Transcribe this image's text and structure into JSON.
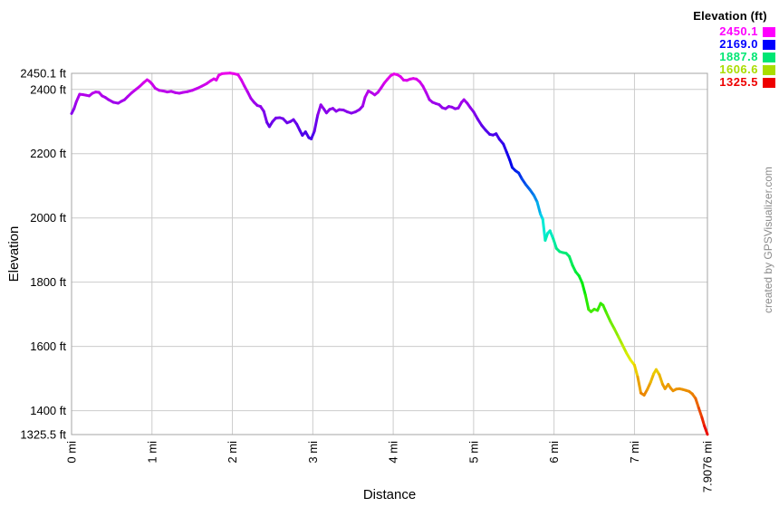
{
  "credit": "created by GPSVisualizer.com",
  "legend": {
    "title": "Elevation (ft)",
    "entries": [
      {
        "value": "2450.1",
        "color": "#ff00ff"
      },
      {
        "value": "2169.0",
        "color": "#0000ff"
      },
      {
        "value": "1887.8",
        "color": "#00e673"
      },
      {
        "value": "1606.6",
        "color": "#aadd00"
      },
      {
        "value": "1325.5",
        "color": "#ee0000"
      }
    ]
  },
  "chart_data": {
    "type": "line",
    "title": "",
    "xlabel": "Distance",
    "ylabel": "Elevation",
    "x_unit": "mi",
    "y_unit": "ft",
    "xlim": [
      0,
      7.9076
    ],
    "ylim": [
      1325.5,
      2450.1
    ],
    "grid": true,
    "legend_position": "top-right",
    "x_ticks": [
      {
        "value": 0,
        "label": "0 mi"
      },
      {
        "value": 1,
        "label": "1 mi"
      },
      {
        "value": 2,
        "label": "2 mi"
      },
      {
        "value": 3,
        "label": "3 mi"
      },
      {
        "value": 4,
        "label": "4 mi"
      },
      {
        "value": 5,
        "label": "5 mi"
      },
      {
        "value": 6,
        "label": "6 mi"
      },
      {
        "value": 7,
        "label": "7 mi"
      },
      {
        "value": 7.9076,
        "label": "7.9076 mi"
      }
    ],
    "y_ticks": [
      {
        "value": 2450.1,
        "label": "2450.1 ft"
      },
      {
        "value": 2400,
        "label": "2400 ft"
      },
      {
        "value": 2200,
        "label": "2200 ft"
      },
      {
        "value": 2000,
        "label": "2000 ft"
      },
      {
        "value": 1800,
        "label": "1800 ft"
      },
      {
        "value": 1600,
        "label": "1600 ft"
      },
      {
        "value": 1400,
        "label": "1400 ft"
      },
      {
        "value": 1325.5,
        "label": "1325.5 ft"
      }
    ],
    "color_mode": "elevation-rainbow-hue",
    "color_stops": [
      {
        "elevation": 2450.1,
        "hue": 300
      },
      {
        "elevation": 2169.0,
        "hue": 240
      },
      {
        "elevation": 1887.8,
        "hue": 150
      },
      {
        "elevation": 1606.6,
        "hue": 75
      },
      {
        "elevation": 1325.5,
        "hue": 0
      }
    ],
    "points": [
      [
        0.0,
        2325
      ],
      [
        0.03,
        2340
      ],
      [
        0.06,
        2362
      ],
      [
        0.1,
        2385
      ],
      [
        0.14,
        2384
      ],
      [
        0.18,
        2382
      ],
      [
        0.22,
        2380
      ],
      [
        0.26,
        2388
      ],
      [
        0.3,
        2392
      ],
      [
        0.34,
        2391
      ],
      [
        0.38,
        2380
      ],
      [
        0.42,
        2375
      ],
      [
        0.46,
        2368
      ],
      [
        0.52,
        2360
      ],
      [
        0.58,
        2357
      ],
      [
        0.62,
        2363
      ],
      [
        0.66,
        2368
      ],
      [
        0.7,
        2378
      ],
      [
        0.75,
        2390
      ],
      [
        0.8,
        2400
      ],
      [
        0.85,
        2410
      ],
      [
        0.9,
        2422
      ],
      [
        0.94,
        2430
      ],
      [
        0.97,
        2425
      ],
      [
        1.0,
        2417
      ],
      [
        1.04,
        2404
      ],
      [
        1.09,
        2397
      ],
      [
        1.14,
        2395
      ],
      [
        1.19,
        2392
      ],
      [
        1.24,
        2394
      ],
      [
        1.29,
        2390
      ],
      [
        1.34,
        2388
      ],
      [
        1.39,
        2391
      ],
      [
        1.44,
        2393
      ],
      [
        1.5,
        2397
      ],
      [
        1.56,
        2403
      ],
      [
        1.62,
        2410
      ],
      [
        1.68,
        2418
      ],
      [
        1.73,
        2427
      ],
      [
        1.77,
        2433
      ],
      [
        1.8,
        2429
      ],
      [
        1.83,
        2444
      ],
      [
        1.87,
        2449
      ],
      [
        1.92,
        2450
      ],
      [
        1.97,
        2451
      ],
      [
        2.02,
        2449
      ],
      [
        2.07,
        2446
      ],
      [
        2.11,
        2430
      ],
      [
        2.15,
        2410
      ],
      [
        2.19,
        2392
      ],
      [
        2.23,
        2372
      ],
      [
        2.27,
        2360
      ],
      [
        2.31,
        2350
      ],
      [
        2.35,
        2347
      ],
      [
        2.39,
        2332
      ],
      [
        2.43,
        2297
      ],
      [
        2.46,
        2284
      ],
      [
        2.5,
        2300
      ],
      [
        2.54,
        2311
      ],
      [
        2.59,
        2312
      ],
      [
        2.63,
        2309
      ],
      [
        2.68,
        2296
      ],
      [
        2.72,
        2300
      ],
      [
        2.76,
        2306
      ],
      [
        2.8,
        2292
      ],
      [
        2.84,
        2272
      ],
      [
        2.87,
        2257
      ],
      [
        2.91,
        2268
      ],
      [
        2.95,
        2250
      ],
      [
        2.98,
        2246
      ],
      [
        3.02,
        2270
      ],
      [
        3.06,
        2320
      ],
      [
        3.1,
        2352
      ],
      [
        3.14,
        2338
      ],
      [
        3.17,
        2327
      ],
      [
        3.21,
        2338
      ],
      [
        3.25,
        2341
      ],
      [
        3.29,
        2332
      ],
      [
        3.33,
        2337
      ],
      [
        3.38,
        2336
      ],
      [
        3.43,
        2330
      ],
      [
        3.48,
        2326
      ],
      [
        3.53,
        2330
      ],
      [
        3.58,
        2337
      ],
      [
        3.62,
        2348
      ],
      [
        3.65,
        2375
      ],
      [
        3.69,
        2395
      ],
      [
        3.73,
        2390
      ],
      [
        3.77,
        2383
      ],
      [
        3.81,
        2391
      ],
      [
        3.85,
        2405
      ],
      [
        3.89,
        2420
      ],
      [
        3.93,
        2432
      ],
      [
        3.97,
        2443
      ],
      [
        4.01,
        2448
      ],
      [
        4.05,
        2446
      ],
      [
        4.09,
        2440
      ],
      [
        4.13,
        2429
      ],
      [
        4.17,
        2428
      ],
      [
        4.21,
        2432
      ],
      [
        4.25,
        2434
      ],
      [
        4.29,
        2432
      ],
      [
        4.33,
        2424
      ],
      [
        4.37,
        2410
      ],
      [
        4.41,
        2390
      ],
      [
        4.45,
        2368
      ],
      [
        4.49,
        2360
      ],
      [
        4.53,
        2356
      ],
      [
        4.57,
        2353
      ],
      [
        4.61,
        2343
      ],
      [
        4.65,
        2340
      ],
      [
        4.69,
        2347
      ],
      [
        4.73,
        2345
      ],
      [
        4.77,
        2340
      ],
      [
        4.81,
        2342
      ],
      [
        4.85,
        2360
      ],
      [
        4.88,
        2368
      ],
      [
        4.92,
        2357
      ],
      [
        4.96,
        2343
      ],
      [
        5.0,
        2330
      ],
      [
        5.05,
        2308
      ],
      [
        5.1,
        2288
      ],
      [
        5.15,
        2273
      ],
      [
        5.2,
        2260
      ],
      [
        5.24,
        2258
      ],
      [
        5.28,
        2262
      ],
      [
        5.32,
        2245
      ],
      [
        5.37,
        2230
      ],
      [
        5.41,
        2205
      ],
      [
        5.45,
        2180
      ],
      [
        5.48,
        2157
      ],
      [
        5.52,
        2147
      ],
      [
        5.56,
        2140
      ],
      [
        5.6,
        2122
      ],
      [
        5.65,
        2103
      ],
      [
        5.7,
        2088
      ],
      [
        5.75,
        2070
      ],
      [
        5.79,
        2050
      ],
      [
        5.83,
        2012
      ],
      [
        5.86,
        1996
      ],
      [
        5.89,
        1930
      ],
      [
        5.92,
        1952
      ],
      [
        5.95,
        1960
      ],
      [
        5.99,
        1935
      ],
      [
        6.03,
        1905
      ],
      [
        6.07,
        1895
      ],
      [
        6.11,
        1892
      ],
      [
        6.15,
        1890
      ],
      [
        6.19,
        1880
      ],
      [
        6.23,
        1852
      ],
      [
        6.27,
        1832
      ],
      [
        6.31,
        1820
      ],
      [
        6.35,
        1798
      ],
      [
        6.39,
        1760
      ],
      [
        6.43,
        1715
      ],
      [
        6.46,
        1708
      ],
      [
        6.5,
        1716
      ],
      [
        6.54,
        1712
      ],
      [
        6.58,
        1734
      ],
      [
        6.61,
        1728
      ],
      [
        6.65,
        1705
      ],
      [
        6.7,
        1678
      ],
      [
        6.75,
        1655
      ],
      [
        6.8,
        1630
      ],
      [
        6.85,
        1605
      ],
      [
        6.9,
        1580
      ],
      [
        6.95,
        1558
      ],
      [
        7.0,
        1542
      ],
      [
        7.04,
        1505
      ],
      [
        7.08,
        1455
      ],
      [
        7.12,
        1448
      ],
      [
        7.16,
        1466
      ],
      [
        7.2,
        1488
      ],
      [
        7.24,
        1515
      ],
      [
        7.27,
        1528
      ],
      [
        7.31,
        1512
      ],
      [
        7.35,
        1482
      ],
      [
        7.38,
        1468
      ],
      [
        7.42,
        1482
      ],
      [
        7.45,
        1470
      ],
      [
        7.48,
        1462
      ],
      [
        7.52,
        1467
      ],
      [
        7.56,
        1468
      ],
      [
        7.6,
        1466
      ],
      [
        7.64,
        1463
      ],
      [
        7.68,
        1460
      ],
      [
        7.72,
        1452
      ],
      [
        7.76,
        1438
      ],
      [
        7.8,
        1408
      ],
      [
        7.84,
        1378
      ],
      [
        7.87,
        1352
      ],
      [
        7.9076,
        1326
      ]
    ]
  }
}
